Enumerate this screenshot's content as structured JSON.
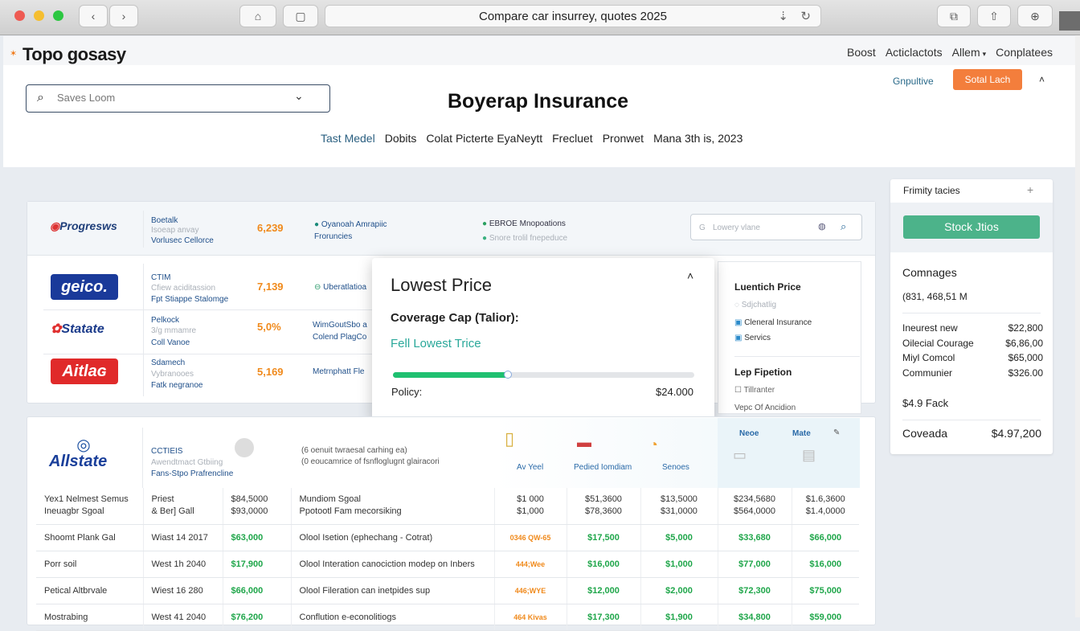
{
  "browser": {
    "url_title": "Compare car insurrey, quotes 2025"
  },
  "site": {
    "logo": "Topo gosasy",
    "nav": [
      "Boost",
      "Acticlactots",
      "Allem",
      "Conplatees"
    ],
    "link": "Gnpultive",
    "cta": "Sotal Lach"
  },
  "search": {
    "placeholder": "Saves Loom"
  },
  "page_title": "Boyerap Insurance",
  "subnav": [
    "Tast Medel",
    "Dobits",
    "Colat Picterte EyaNeytt",
    "Frecluet",
    "Pronwet",
    "Mana 3th is, 2023"
  ],
  "top_row": {
    "brand": "Progresws",
    "l1": "Boetalk",
    "l2": "Isoeap anvay",
    "l3": "Vorlusec Cellorce",
    "value": "6,239",
    "f1": "Oyanoah Amrapiic",
    "f2": "Froruncies",
    "f3": "EBROE Mnopoations",
    "f4": "Snore trolil fnepeduce",
    "search_placeholder": "Lowery vlane"
  },
  "providers": [
    {
      "brand": "geico.",
      "l1": "CTIM",
      "l2": "Cfiew aciditassion",
      "l3": "Fpt Stiappe Stalomge",
      "value": "7,139",
      "feat": "Uberatlatioa"
    },
    {
      "brand": "Statate",
      "l1": "Pelkock",
      "l2": "3/g mmamre",
      "l3": "Coll Vanoe",
      "value": "5,0%",
      "feat": "WimGoutSbo a",
      "feat2": "Colend PlagCo"
    },
    {
      "brand": "Aitlaɢ",
      "l1": "Sdamech",
      "l2": "Vybranooes",
      "l3": "Fatk negranoe",
      "value": "5,169",
      "feat": "Metrnphatt Fle"
    }
  ],
  "popover": {
    "title": "Lowest Price",
    "label": "Coverage Cap (Talior):",
    "link": "Fell Lowest Trice",
    "progress": 0.38,
    "policy_label": "Policy:",
    "policy_value": "$24.000"
  },
  "filter_panel": {
    "h1": "Luentich Price",
    "o1": "Sdjchatlig",
    "o2": "Cleneral Insurance",
    "o3": "Servics",
    "h2": "Lep Fipetion",
    "o4": "Tillranter",
    "o5": "Vepc Of Ancidion"
  },
  "sidebar": {
    "title": "Frimity tacies",
    "button": "Stock Jtios",
    "section": "Comnages",
    "summary": "(831, 468,51 M",
    "items": [
      {
        "label": "Ineurest new",
        "value": "$22,800"
      },
      {
        "label": "Oilecial Courage",
        "value": "$6,86,00"
      },
      {
        "label": "Miyl Comcol",
        "value": "$65,000"
      },
      {
        "label": "Communier",
        "value": "$326.00"
      }
    ],
    "fack": "$4.9 Fack",
    "total_label": "Coveada",
    "total_value": "$4.97,200"
  },
  "allstate": {
    "brand": "Allstate",
    "l1": "CCTIEIS",
    "l2": "Awendtmact Gtbiing",
    "l3": "Fans-Stpo Prafrencline",
    "d1": "(6 oenuit twraesal carhing ea)",
    "d2": "(0 eoucamrice of fsnfloglugnt glairacori",
    "cols": [
      "Av Yeel",
      "Pedied Iomdiam",
      "Senoes",
      "Neoe",
      "Mate"
    ]
  },
  "table": [
    [
      "Yex1 Nelmest Semus\nIneuagbr Sgoal",
      "Priest\n& Ber] Gall",
      "$84,5000\n$93,0000",
      "Mundiom Sgoal\nPpotootl Fam mecorsiking",
      "$1 000\n$1,000",
      "$51,3600\n$78,3600",
      "$13,5000\n$31,0000",
      "$234,5680\n$564,0000",
      "$1.6,3600\n$1.4,0000"
    ],
    [
      "Shoomt Plank Gal",
      "Wiast 14 2017",
      "$63,000",
      "Olool Isetion (ephechang - Cotrat)",
      "0346 QW-65",
      "$17,500",
      "$5,000",
      "$33,680",
      "$66,000"
    ],
    [
      "Porr soil",
      "West 1h 2040",
      "$17,900",
      "Olool Interation canociction modep on Inbers",
      "444;Wee",
      "$16,000",
      "$1,000",
      "$77,000",
      "$16,000"
    ],
    [
      "Petical Altbrvale",
      "Wiest 16 280",
      "$66,000",
      "Olool Fileration can inetpides sup",
      "446;WYE",
      "$12,000",
      "$2,000",
      "$72,300",
      "$75,000"
    ],
    [
      "Mostrabing",
      "West 41 2040",
      "$76,200",
      "Conflution e-econolitiogs",
      "464 Kivas",
      "$17,300",
      "$1,900",
      "$34,800",
      "$59,000"
    ]
  ]
}
